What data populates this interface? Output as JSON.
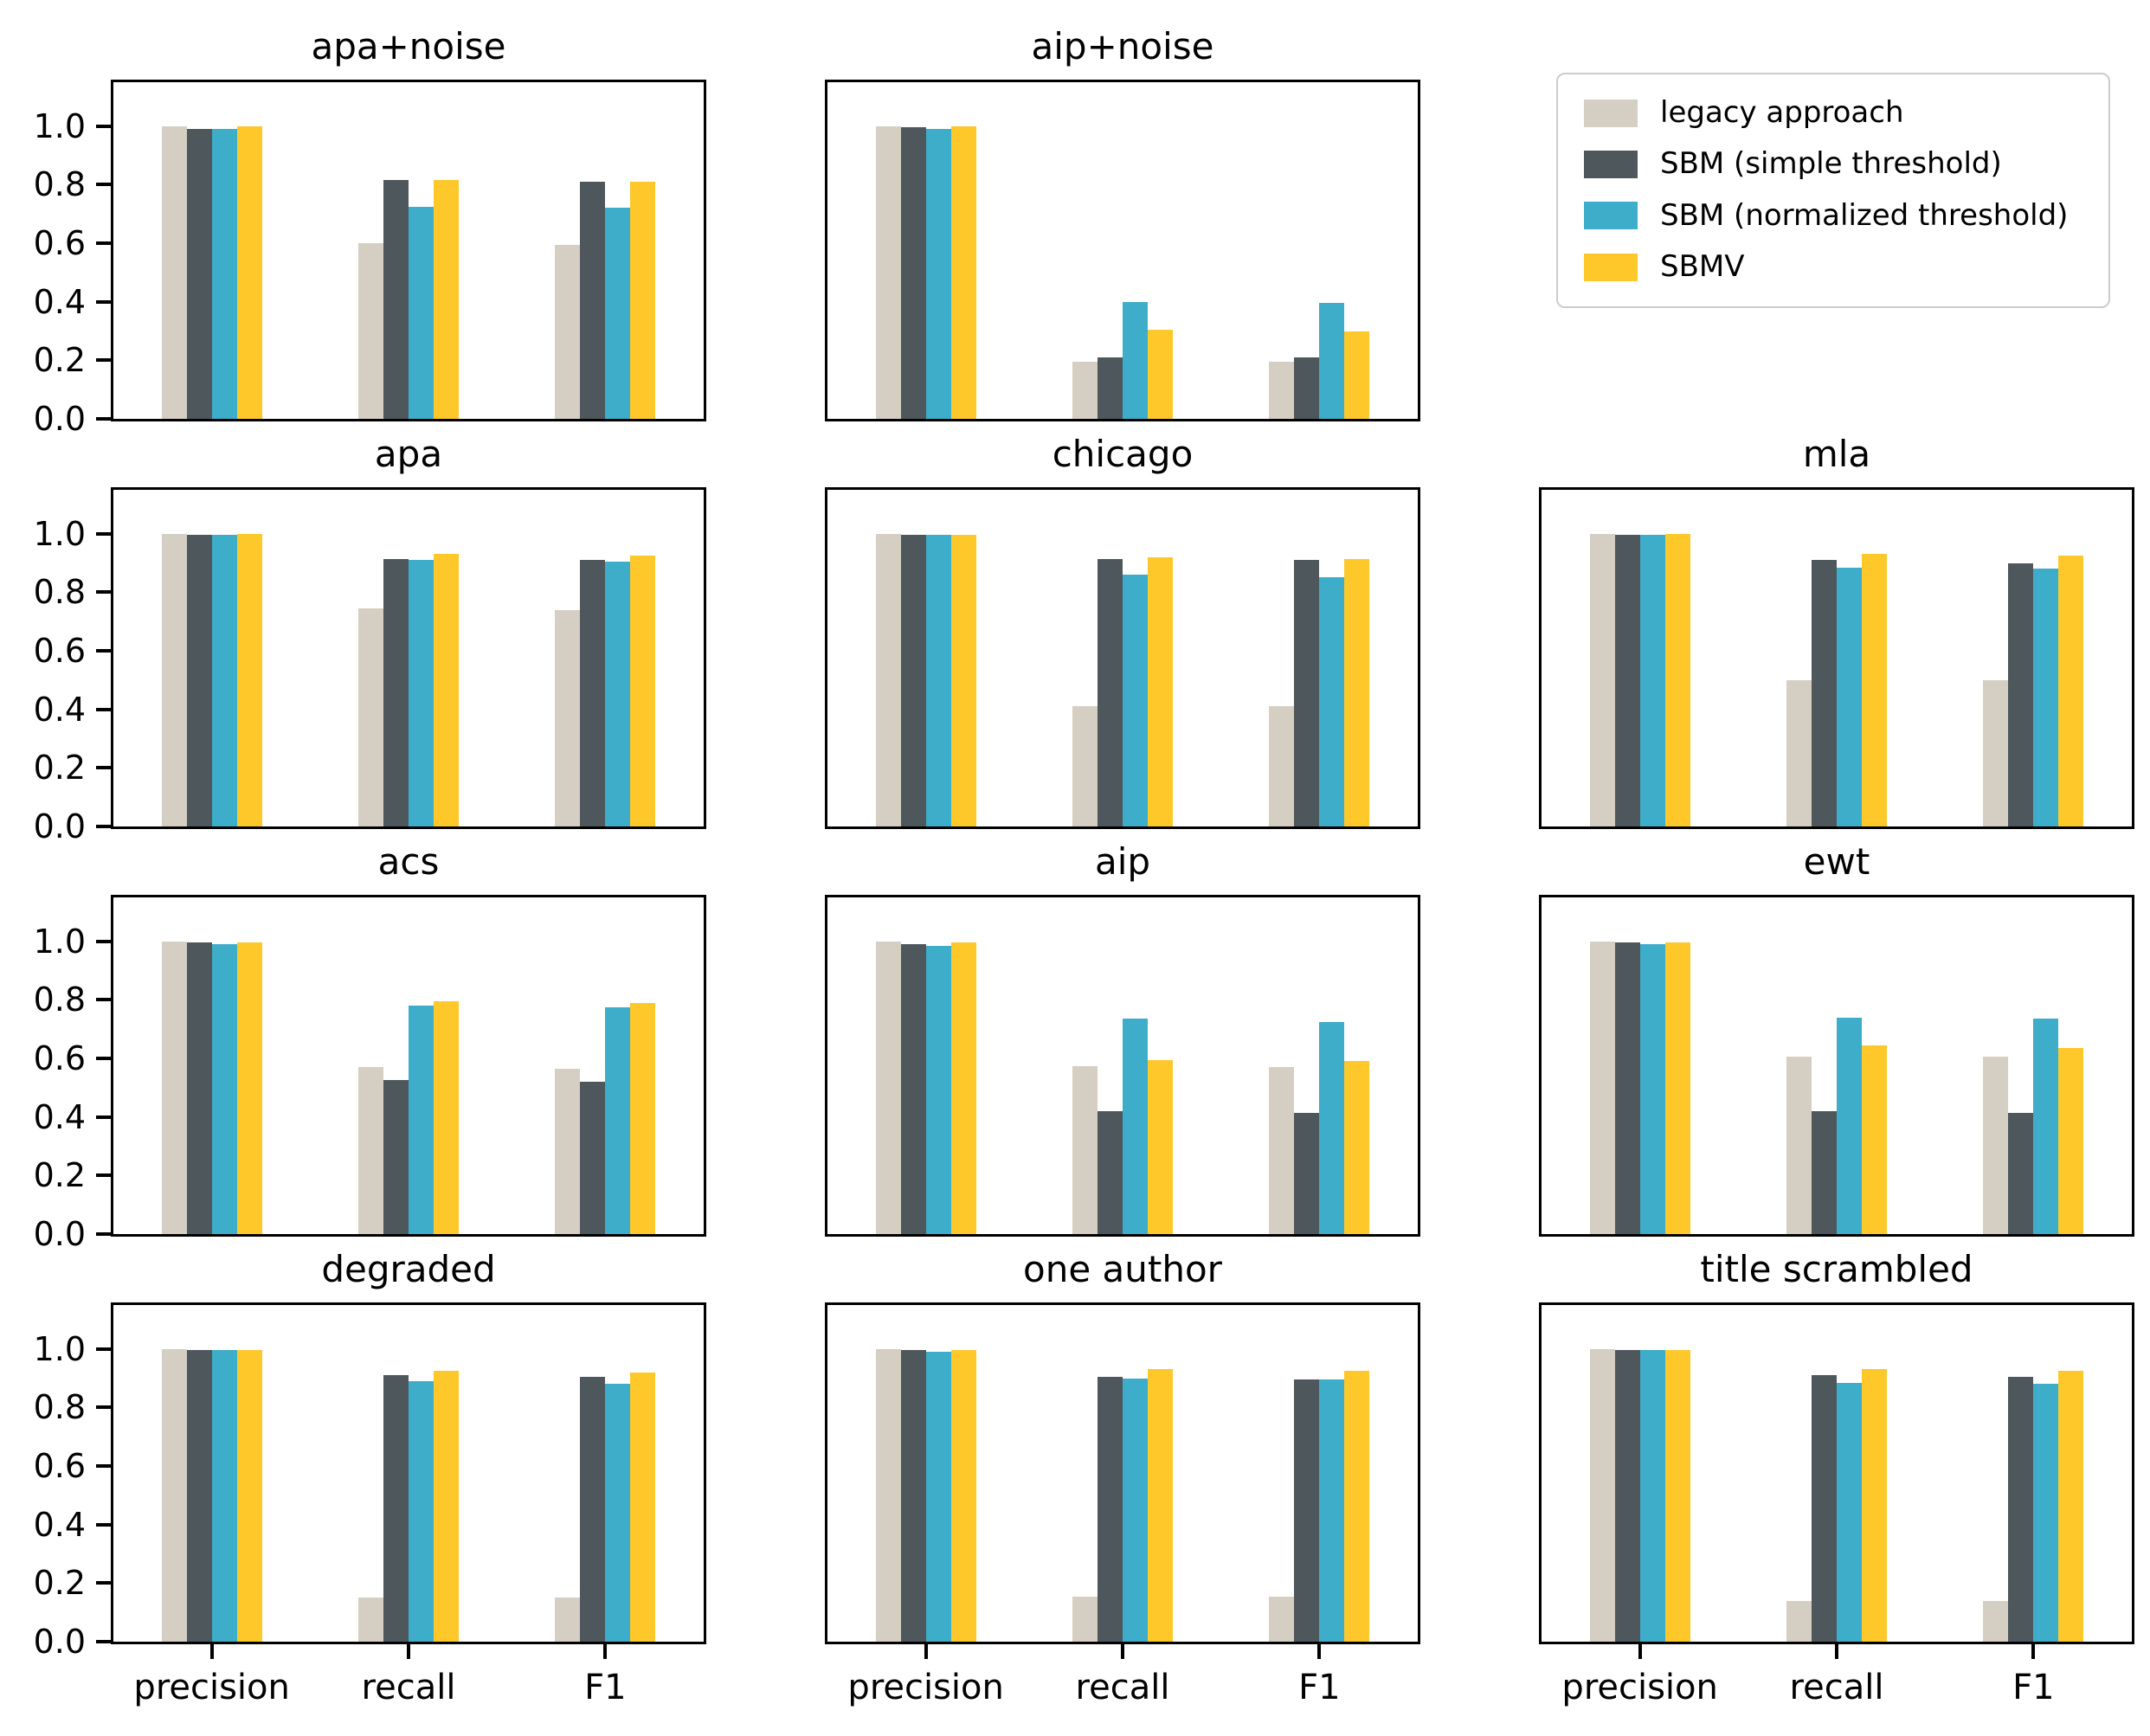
{
  "figure": {
    "background": "#ffffff",
    "series_colors": {
      "legacy": "#d5cfc3",
      "sbm_simple": "#4e575b",
      "sbm_normalized": "#3dadc9",
      "sbmv": "#fec82b"
    }
  },
  "legend": {
    "position": "top-right",
    "items": [
      {
        "label": "legacy approach",
        "color": "#d5cfc3"
      },
      {
        "label": "SBM (simple threshold)",
        "color": "#4e575b"
      },
      {
        "label": "SBM (normalized threshold)",
        "color": "#3dadc9"
      },
      {
        "label": "SBMV",
        "color": "#fec82b"
      }
    ]
  },
  "axis": {
    "ylim": [
      0,
      1.15
    ],
    "y_tick_values": [
      0.0,
      0.2,
      0.4,
      0.6,
      0.8,
      1.0
    ],
    "y_tick_labels": [
      "0.0",
      "0.2",
      "0.4",
      "0.6",
      "0.8",
      "1.0"
    ],
    "x_categories": [
      "precision",
      "recall",
      "F1"
    ],
    "grid": false
  },
  "chart_data": [
    {
      "type": "bar",
      "title": "apa+noise",
      "row": 1,
      "col": 1,
      "categories": [
        "precision",
        "recall",
        "F1"
      ],
      "ylim": [
        0,
        1.15
      ],
      "series": [
        {
          "name": "legacy approach",
          "values": [
            1.0,
            0.6,
            0.595
          ]
        },
        {
          "name": "SBM (simple threshold)",
          "values": [
            0.99,
            0.815,
            0.81
          ]
        },
        {
          "name": "SBM (normalized threshold)",
          "values": [
            0.99,
            0.725,
            0.72
          ]
        },
        {
          "name": "SBMV",
          "values": [
            1.0,
            0.815,
            0.81
          ]
        }
      ]
    },
    {
      "type": "bar",
      "title": "aip+noise",
      "row": 1,
      "col": 2,
      "categories": [
        "precision",
        "recall",
        "F1"
      ],
      "ylim": [
        0,
        1.15
      ],
      "series": [
        {
          "name": "legacy approach",
          "values": [
            1.0,
            0.195,
            0.195
          ]
        },
        {
          "name": "SBM (simple threshold)",
          "values": [
            0.995,
            0.21,
            0.21
          ]
        },
        {
          "name": "SBM (normalized threshold)",
          "values": [
            0.99,
            0.4,
            0.395
          ]
        },
        {
          "name": "SBMV",
          "values": [
            1.0,
            0.305,
            0.3
          ]
        }
      ]
    },
    {
      "type": "bar",
      "title": "apa",
      "row": 2,
      "col": 1,
      "categories": [
        "precision",
        "recall",
        "F1"
      ],
      "ylim": [
        0,
        1.15
      ],
      "series": [
        {
          "name": "legacy approach",
          "values": [
            1.0,
            0.745,
            0.74
          ]
        },
        {
          "name": "SBM (simple threshold)",
          "values": [
            0.995,
            0.915,
            0.91
          ]
        },
        {
          "name": "SBM (normalized threshold)",
          "values": [
            0.995,
            0.91,
            0.905
          ]
        },
        {
          "name": "SBMV",
          "values": [
            1.0,
            0.93,
            0.925
          ]
        }
      ]
    },
    {
      "type": "bar",
      "title": "chicago",
      "row": 2,
      "col": 2,
      "categories": [
        "precision",
        "recall",
        "F1"
      ],
      "ylim": [
        0,
        1.15
      ],
      "series": [
        {
          "name": "legacy approach",
          "values": [
            1.0,
            0.41,
            0.41
          ]
        },
        {
          "name": "SBM (simple threshold)",
          "values": [
            0.995,
            0.915,
            0.91
          ]
        },
        {
          "name": "SBM (normalized threshold)",
          "values": [
            0.995,
            0.86,
            0.85
          ]
        },
        {
          "name": "SBMV",
          "values": [
            0.995,
            0.92,
            0.915
          ]
        }
      ]
    },
    {
      "type": "bar",
      "title": "mla",
      "row": 2,
      "col": 3,
      "categories": [
        "precision",
        "recall",
        "F1"
      ],
      "ylim": [
        0,
        1.15
      ],
      "series": [
        {
          "name": "legacy approach",
          "values": [
            1.0,
            0.5,
            0.5
          ]
        },
        {
          "name": "SBM (simple threshold)",
          "values": [
            0.995,
            0.91,
            0.9
          ]
        },
        {
          "name": "SBM (normalized threshold)",
          "values": [
            0.995,
            0.885,
            0.88
          ]
        },
        {
          "name": "SBMV",
          "values": [
            1.0,
            0.93,
            0.925
          ]
        }
      ]
    },
    {
      "type": "bar",
      "title": "acs",
      "row": 3,
      "col": 1,
      "categories": [
        "precision",
        "recall",
        "F1"
      ],
      "ylim": [
        0,
        1.15
      ],
      "series": [
        {
          "name": "legacy approach",
          "values": [
            1.0,
            0.57,
            0.565
          ]
        },
        {
          "name": "SBM (simple threshold)",
          "values": [
            0.995,
            0.525,
            0.52
          ]
        },
        {
          "name": "SBM (normalized threshold)",
          "values": [
            0.99,
            0.78,
            0.775
          ]
        },
        {
          "name": "SBMV",
          "values": [
            0.995,
            0.795,
            0.79
          ]
        }
      ]
    },
    {
      "type": "bar",
      "title": "aip",
      "row": 3,
      "col": 2,
      "categories": [
        "precision",
        "recall",
        "F1"
      ],
      "ylim": [
        0,
        1.15
      ],
      "series": [
        {
          "name": "legacy approach",
          "values": [
            1.0,
            0.575,
            0.57
          ]
        },
        {
          "name": "SBM (simple threshold)",
          "values": [
            0.99,
            0.42,
            0.415
          ]
        },
        {
          "name": "SBM (normalized threshold)",
          "values": [
            0.985,
            0.735,
            0.725
          ]
        },
        {
          "name": "SBMV",
          "values": [
            0.995,
            0.595,
            0.59
          ]
        }
      ]
    },
    {
      "type": "bar",
      "title": "ewt",
      "row": 3,
      "col": 3,
      "categories": [
        "precision",
        "recall",
        "F1"
      ],
      "ylim": [
        0,
        1.15
      ],
      "series": [
        {
          "name": "legacy approach",
          "values": [
            1.0,
            0.605,
            0.605
          ]
        },
        {
          "name": "SBM (simple threshold)",
          "values": [
            0.995,
            0.42,
            0.415
          ]
        },
        {
          "name": "SBM (normalized threshold)",
          "values": [
            0.99,
            0.74,
            0.735
          ]
        },
        {
          "name": "SBMV",
          "values": [
            0.995,
            0.645,
            0.635
          ]
        }
      ]
    },
    {
      "type": "bar",
      "title": "degraded",
      "row": 4,
      "col": 1,
      "categories": [
        "precision",
        "recall",
        "F1"
      ],
      "ylim": [
        0,
        1.15
      ],
      "series": [
        {
          "name": "legacy approach",
          "values": [
            1.0,
            0.15,
            0.15
          ]
        },
        {
          "name": "SBM (simple threshold)",
          "values": [
            0.995,
            0.91,
            0.905
          ]
        },
        {
          "name": "SBM (normalized threshold)",
          "values": [
            0.995,
            0.89,
            0.88
          ]
        },
        {
          "name": "SBMV",
          "values": [
            0.995,
            0.925,
            0.92
          ]
        }
      ]
    },
    {
      "type": "bar",
      "title": "one author",
      "row": 4,
      "col": 2,
      "categories": [
        "precision",
        "recall",
        "F1"
      ],
      "ylim": [
        0,
        1.15
      ],
      "series": [
        {
          "name": "legacy approach",
          "values": [
            1.0,
            0.155,
            0.155
          ]
        },
        {
          "name": "SBM (simple threshold)",
          "values": [
            0.995,
            0.905,
            0.895
          ]
        },
        {
          "name": "SBM (normalized threshold)",
          "values": [
            0.99,
            0.9,
            0.895
          ]
        },
        {
          "name": "SBMV",
          "values": [
            0.995,
            0.93,
            0.925
          ]
        }
      ]
    },
    {
      "type": "bar",
      "title": "title scrambled",
      "row": 4,
      "col": 3,
      "categories": [
        "precision",
        "recall",
        "F1"
      ],
      "ylim": [
        0,
        1.15
      ],
      "series": [
        {
          "name": "legacy approach",
          "values": [
            1.0,
            0.14,
            0.14
          ]
        },
        {
          "name": "SBM (simple threshold)",
          "values": [
            0.995,
            0.91,
            0.905
          ]
        },
        {
          "name": "SBM (normalized threshold)",
          "values": [
            0.995,
            0.885,
            0.88
          ]
        },
        {
          "name": "SBMV",
          "values": [
            0.995,
            0.93,
            0.925
          ]
        }
      ]
    }
  ]
}
